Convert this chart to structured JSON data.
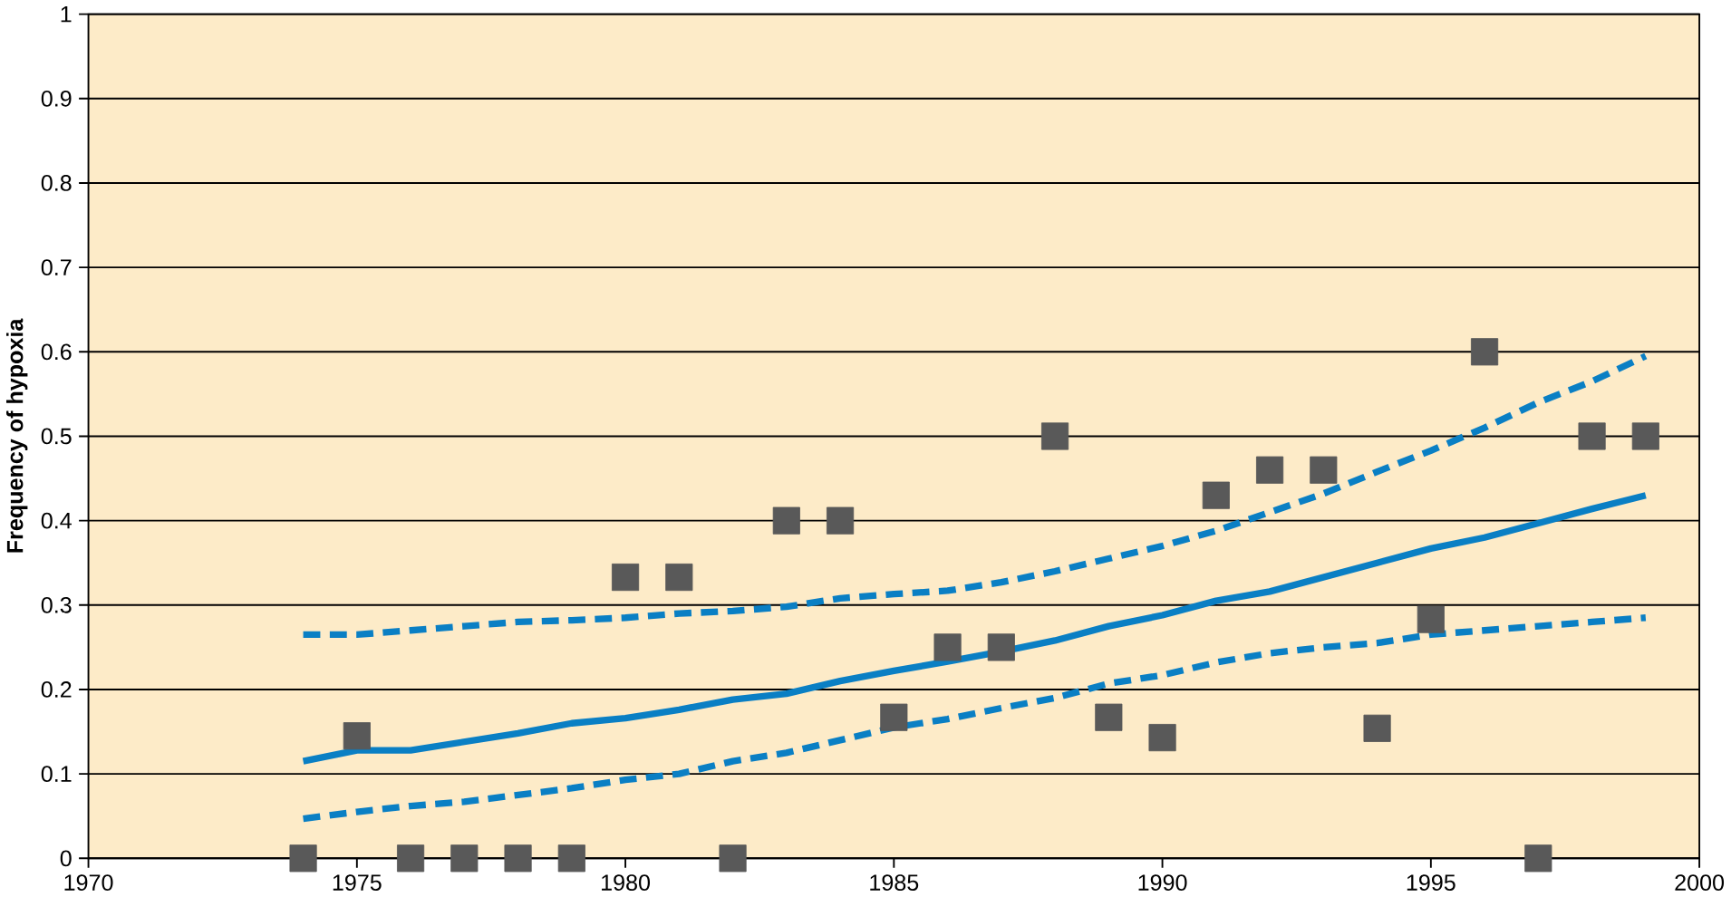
{
  "chart_data": {
    "type": "scatter",
    "ylabel": "Frequency of hypoxia",
    "xlim": [
      1970,
      2000
    ],
    "xticks": [
      1970,
      1975,
      1980,
      1985,
      1990,
      1995,
      2000
    ],
    "ylim": [
      0,
      1
    ],
    "yticks": [
      0,
      0.1,
      0.2,
      0.3,
      0.4,
      0.5,
      0.6,
      0.7,
      0.8,
      0.9,
      1
    ],
    "grid": "y",
    "x": [
      1974,
      1975,
      1976,
      1977,
      1978,
      1979,
      1980,
      1981,
      1982,
      1983,
      1984,
      1985,
      1986,
      1987,
      1988,
      1989,
      1990,
      1991,
      1992,
      1993,
      1994,
      1995,
      1996,
      1997,
      1998,
      1999
    ],
    "series": [
      {
        "color": "#595959",
        "marker": "square",
        "values": [
          0,
          0.145,
          0,
          0,
          0,
          0,
          0.333,
          0.333,
          0,
          0.4,
          0.4,
          0.167,
          0.25,
          0.25,
          0.5,
          0.167,
          0.143,
          0.43,
          0.46,
          0.46,
          0.154,
          0.283,
          0.6,
          0,
          0.5,
          0.5
        ]
      },
      {
        "type": "line",
        "color": "#0a7fc4",
        "line_style": "solid",
        "values": [
          0.115,
          0.128,
          0.128,
          0.138,
          0.148,
          0.16,
          0.166,
          0.176,
          0.188,
          0.195,
          0.21,
          0.222,
          0.233,
          0.245,
          0.258,
          0.275,
          0.288,
          0.305,
          0.316,
          0.333,
          0.35,
          0.367,
          0.38,
          0.397,
          0.414,
          0.43
        ]
      },
      {
        "type": "line",
        "color": "#0a7fc4",
        "line_style": "dashed",
        "values": [
          0.265,
          0.265,
          0.27,
          0.275,
          0.28,
          0.282,
          0.285,
          0.29,
          0.293,
          0.298,
          0.308,
          0.313,
          0.317,
          0.327,
          0.34,
          0.355,
          0.37,
          0.388,
          0.41,
          0.432,
          0.458,
          0.483,
          0.51,
          0.54,
          0.565,
          0.595
        ]
      },
      {
        "type": "line",
        "color": "#0a7fc4",
        "line_style": "dashed",
        "values": [
          0.047,
          0.055,
          0.062,
          0.067,
          0.075,
          0.083,
          0.093,
          0.1,
          0.115,
          0.125,
          0.14,
          0.155,
          0.165,
          0.178,
          0.19,
          0.207,
          0.217,
          0.232,
          0.243,
          0.25,
          0.255,
          0.265,
          0.27,
          0.275,
          0.28,
          0.285
        ]
      }
    ]
  }
}
